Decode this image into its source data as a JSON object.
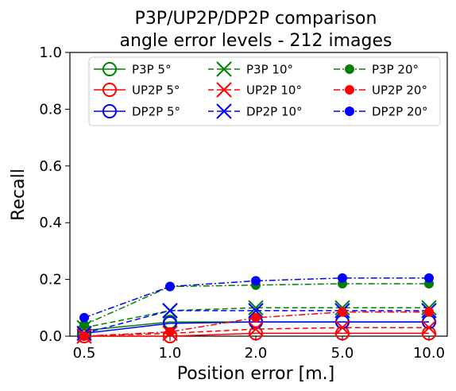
{
  "chart_data": {
    "type": "line",
    "title": "P3P/UP2P/DP2P comparison",
    "subtitle": "angle error levels - 212 images",
    "xlabel": "Position error [m.]",
    "ylabel": "Recall",
    "categories": [
      "0.5",
      "1.0",
      "2.0",
      "5.0",
      "10.0"
    ],
    "ylim": [
      0,
      1
    ],
    "yticks": [
      "0.0",
      "0.2",
      "0.4",
      "0.6",
      "0.8",
      "1.0"
    ],
    "grid": false,
    "legend_placement": "top",
    "series": [
      {
        "name": "P3P 5°",
        "color": "#008000",
        "marker": "circle-open",
        "dash": "solid",
        "values": [
          0.02,
          0.05,
          0.05,
          0.05,
          0.05
        ]
      },
      {
        "name": "UP2P 5°",
        "color": "#ff0000",
        "marker": "circle-open",
        "dash": "solid",
        "values": [
          0.0,
          0.0,
          0.01,
          0.01,
          0.01
        ]
      },
      {
        "name": "DP2P 5°",
        "color": "#0000ff",
        "marker": "circle-open",
        "dash": "solid",
        "values": [
          0.01,
          0.045,
          0.05,
          0.05,
          0.05
        ]
      },
      {
        "name": "P3P 10°",
        "color": "#008000",
        "marker": "x",
        "dash": "dashed",
        "values": [
          0.03,
          0.09,
          0.1,
          0.1,
          0.1
        ]
      },
      {
        "name": "UP2P 10°",
        "color": "#ff0000",
        "marker": "x",
        "dash": "dashed",
        "values": [
          0.0,
          0.01,
          0.025,
          0.03,
          0.03
        ]
      },
      {
        "name": "DP2P 10°",
        "color": "#0000ff",
        "marker": "x",
        "dash": "dashed",
        "values": [
          0.01,
          0.09,
          0.09,
          0.09,
          0.09
        ]
      },
      {
        "name": "P3P 20°",
        "color": "#008000",
        "marker": "dot",
        "dash": "dashdot",
        "values": [
          0.04,
          0.175,
          0.18,
          0.185,
          0.185
        ]
      },
      {
        "name": "UP2P 20°",
        "color": "#ff0000",
        "marker": "dot",
        "dash": "dashdot",
        "values": [
          0.0,
          0.015,
          0.065,
          0.085,
          0.085
        ]
      },
      {
        "name": "DP2P 20°",
        "color": "#0000ff",
        "marker": "dot",
        "dash": "dashdot",
        "values": [
          0.065,
          0.175,
          0.195,
          0.205,
          0.205
        ]
      }
    ]
  }
}
